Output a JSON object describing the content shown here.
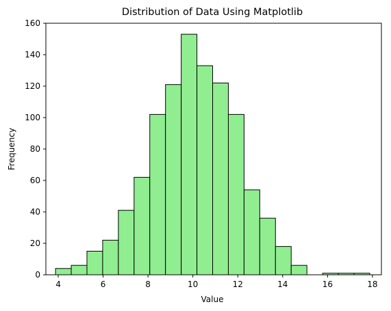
{
  "chart_data": {
    "type": "bar",
    "title": "Distribution of Data Using Matplotlib",
    "xlabel": "Value",
    "ylabel": "Frequency",
    "xlim": [
      3.45,
      18.4
    ],
    "ylim": [
      0,
      160
    ],
    "x_ticks": [
      4,
      6,
      8,
      10,
      12,
      14,
      16,
      18
    ],
    "y_ticks": [
      0,
      20,
      40,
      60,
      80,
      100,
      120,
      140,
      160
    ],
    "bin_edges": [
      3.88,
      4.58,
      5.28,
      5.98,
      6.68,
      7.38,
      8.08,
      8.78,
      9.48,
      10.18,
      10.88,
      11.58,
      12.28,
      12.98,
      13.68,
      14.38,
      15.08,
      15.78,
      16.48,
      17.18,
      17.88
    ],
    "counts": [
      4,
      6,
      15,
      22,
      41,
      62,
      102,
      121,
      153,
      133,
      122,
      102,
      54,
      36,
      18,
      6,
      0,
      1,
      1,
      1
    ],
    "bar_color": "#90ee90",
    "edge_color": "#000000",
    "grid": false
  }
}
